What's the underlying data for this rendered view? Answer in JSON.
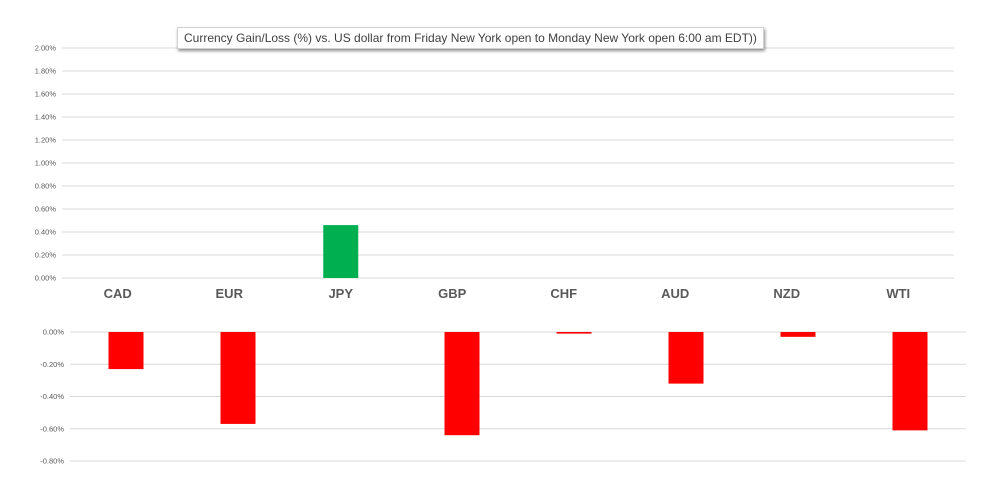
{
  "chart_data": {
    "type": "bar",
    "title": "Currency  Gain/Loss (%) vs. US dollar  from Friday  New York open to  Monday New York open 6:00 am EDT))",
    "categories": [
      "CAD",
      "EUR",
      "JPY",
      "GBP",
      "CHF",
      "AUD",
      "NZD",
      "WTI"
    ],
    "values": [
      -0.23,
      -0.57,
      0.46,
      -0.64,
      -0.01,
      -0.32,
      -0.03,
      -0.61
    ],
    "xlabel": "",
    "ylabel": "",
    "grid": true,
    "legend": "none",
    "positive_panel": {
      "ylim": [
        0,
        2.0
      ],
      "ticks": [
        "0.00%",
        "0.20%",
        "0.40%",
        "0.60%",
        "0.80%",
        "1.00%",
        "1.20%",
        "1.40%",
        "1.60%",
        "1.80%",
        "2.00%"
      ]
    },
    "negative_panel": {
      "ylim": [
        -0.8,
        0
      ],
      "ticks": [
        "0.00%",
        "-0.20%",
        "-0.40%",
        "-0.60%",
        "-0.80%"
      ]
    },
    "colors": {
      "gain": "#00b050",
      "loss": "#ff0000",
      "grid": "#d9d9d9"
    }
  }
}
